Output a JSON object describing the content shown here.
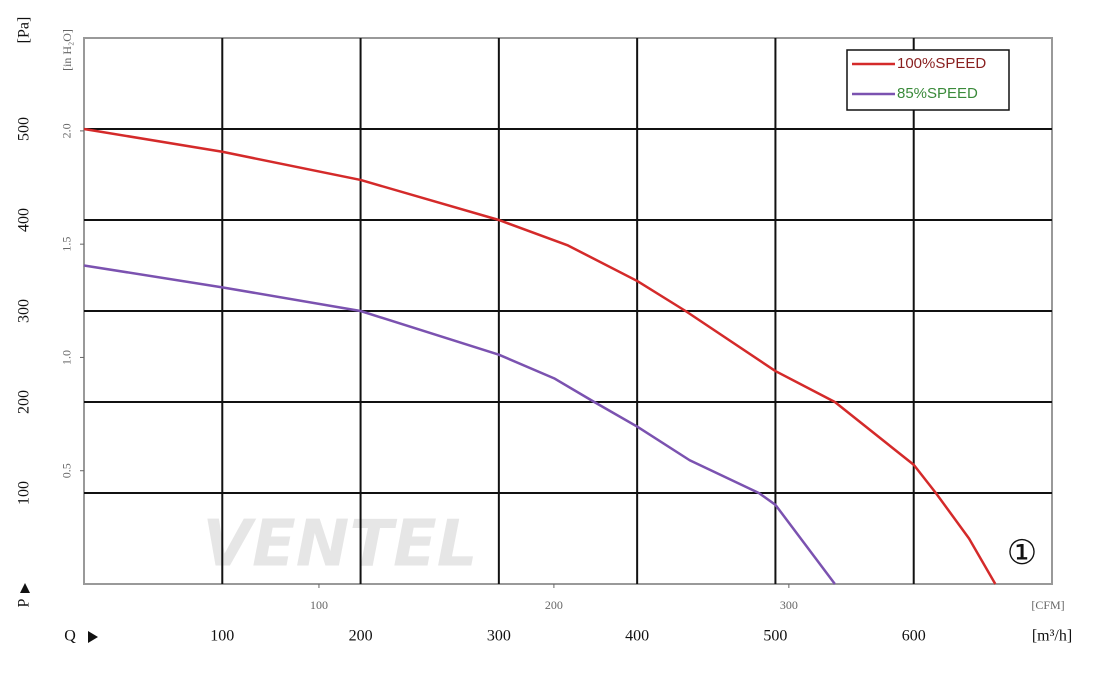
{
  "chart_data": {
    "type": "line",
    "x_label": "[m³/h]",
    "x2_label": "[CFM]",
    "y_label": "[Pa]",
    "y2_label": "[in H₂O]",
    "x_axis_letter": "Q",
    "y_axis_letter": "P",
    "annotation": "①",
    "watermark": "VENTEL",
    "xlim": [
      0,
      700
    ],
    "xticks": [
      100,
      200,
      300,
      400,
      500,
      600
    ],
    "x2lim": [
      0,
      412
    ],
    "x2ticks": [
      100,
      200,
      300
    ],
    "ylim": [
      0,
      600
    ],
    "yticks": [
      100,
      200,
      300,
      400,
      500
    ],
    "y2lim": [
      0,
      2.41
    ],
    "y2ticks": [
      0.5,
      {
        "value": 1,
        "label": "1.0"
      },
      1.5,
      {
        "value": 2,
        "label": "2.0"
      }
    ],
    "grid": true,
    "legend": "upper right",
    "series": [
      {
        "name": "100%SPEED",
        "color": "#d42a2a",
        "x": [
          0,
          100,
          200,
          300,
          350,
          400,
          435,
          500,
          543,
          600,
          616,
          640,
          659
        ],
        "values": [
          500,
          475,
          444,
          400,
          372,
          333,
          300,
          234,
          200,
          131,
          100,
          50,
          0
        ]
      },
      {
        "name": "85%SPEED",
        "color": "#7b52b0",
        "x": [
          0,
          100,
          200,
          300,
          340,
          369,
          400,
          438,
          488,
          500,
          543
        ],
        "values": [
          350,
          326,
          300,
          252,
          226,
          200,
          173,
          136,
          100,
          87,
          0
        ]
      }
    ]
  }
}
